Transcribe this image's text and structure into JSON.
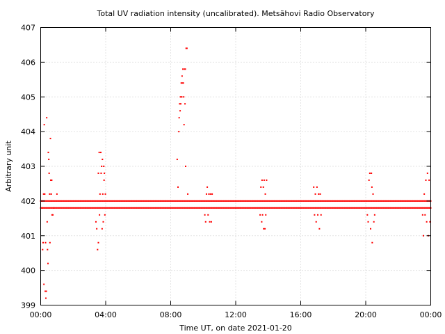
{
  "chart_data": {
    "type": "scatter",
    "title": "Total UV radiation intensity (uncalibrated). Metsähovi Radio Observatory",
    "xlabel": "Time UT, on date 2021-01-20",
    "ylabel": "Arbitrary unit",
    "xlim": [
      0,
      24
    ],
    "ylim": [
      399,
      407
    ],
    "x_ticks": [
      0,
      4,
      8,
      12,
      16,
      20,
      24
    ],
    "x_tick_labels": [
      "00:00",
      "04:00",
      "08:00",
      "12:00",
      "16:00",
      "20:00",
      "00:00"
    ],
    "y_ticks": [
      399,
      400,
      401,
      402,
      403,
      404,
      405,
      406,
      407
    ],
    "y_tick_labels": [
      "399",
      "400",
      "401",
      "402",
      "403",
      "404",
      "405",
      "406",
      "407"
    ],
    "grid": true,
    "marker_color": "#ff0000",
    "x_unit": "hours UT",
    "series": [
      {
        "baseline": [
          {
            "x_start": 0.0,
            "x_end": 24.0,
            "values": [
              401.8,
              402.0
            ]
          }
        ],
        "values": [
          [
            0.05,
            402.0
          ],
          [
            0.1,
            401.8
          ],
          [
            0.12,
            400.6
          ],
          [
            0.15,
            400.8
          ],
          [
            0.18,
            402.2
          ],
          [
            0.2,
            399.6
          ],
          [
            0.22,
            404.2
          ],
          [
            0.25,
            402.2
          ],
          [
            0.28,
            399.4
          ],
          [
            0.3,
            400.8
          ],
          [
            0.32,
            399.2
          ],
          [
            0.35,
            399.4
          ],
          [
            0.37,
            404.4
          ],
          [
            0.4,
            401.4
          ],
          [
            0.42,
            400.6
          ],
          [
            0.45,
            400.2
          ],
          [
            0.47,
            403.4
          ],
          [
            0.5,
            403.2
          ],
          [
            0.52,
            402.8
          ],
          [
            0.55,
            402.2
          ],
          [
            0.57,
            400.8
          ],
          [
            0.6,
            403.8
          ],
          [
            0.62,
            402.6
          ],
          [
            0.65,
            402.2
          ],
          [
            0.68,
            402.6
          ],
          [
            0.7,
            401.6
          ],
          [
            0.75,
            401.6
          ],
          [
            0.8,
            401.8
          ],
          [
            1.0,
            402.2
          ],
          [
            3.4,
            401.4
          ],
          [
            3.45,
            401.2
          ],
          [
            3.5,
            400.6
          ],
          [
            3.55,
            400.8
          ],
          [
            3.55,
            402.8
          ],
          [
            3.6,
            403.4
          ],
          [
            3.62,
            401.6
          ],
          [
            3.65,
            402.2
          ],
          [
            3.7,
            403.4
          ],
          [
            3.72,
            402.8
          ],
          [
            3.75,
            403.0
          ],
          [
            3.78,
            401.2
          ],
          [
            3.8,
            403.2
          ],
          [
            3.82,
            402.2
          ],
          [
            3.85,
            401.4
          ],
          [
            3.88,
            403.0
          ],
          [
            3.9,
            402.6
          ],
          [
            3.92,
            402.8
          ],
          [
            3.95,
            401.6
          ],
          [
            3.98,
            402.2
          ],
          [
            8.4,
            403.2
          ],
          [
            8.45,
            402.4
          ],
          [
            8.5,
            404.0
          ],
          [
            8.52,
            404.4
          ],
          [
            8.55,
            404.8
          ],
          [
            8.58,
            404.6
          ],
          [
            8.6,
            405.0
          ],
          [
            8.62,
            404.8
          ],
          [
            8.65,
            405.4
          ],
          [
            8.68,
            405.0
          ],
          [
            8.7,
            405.6
          ],
          [
            8.72,
            405.4
          ],
          [
            8.75,
            405.8
          ],
          [
            8.78,
            405.4
          ],
          [
            8.8,
            405.0
          ],
          [
            8.82,
            404.2
          ],
          [
            8.85,
            405.8
          ],
          [
            8.88,
            404.8
          ],
          [
            8.9,
            405.8
          ],
          [
            8.92,
            403.0
          ],
          [
            8.95,
            406.4
          ],
          [
            9.0,
            406.4
          ],
          [
            9.05,
            402.2
          ],
          [
            10.1,
            401.6
          ],
          [
            10.15,
            401.4
          ],
          [
            10.2,
            402.2
          ],
          [
            10.25,
            402.4
          ],
          [
            10.3,
            401.6
          ],
          [
            10.35,
            402.2
          ],
          [
            10.4,
            401.4
          ],
          [
            10.45,
            402.2
          ],
          [
            10.5,
            401.4
          ],
          [
            10.55,
            402.2
          ],
          [
            13.5,
            401.6
          ],
          [
            13.55,
            402.4
          ],
          [
            13.6,
            401.4
          ],
          [
            13.62,
            402.6
          ],
          [
            13.65,
            401.6
          ],
          [
            13.7,
            402.4
          ],
          [
            13.72,
            401.2
          ],
          [
            13.75,
            402.6
          ],
          [
            13.8,
            401.2
          ],
          [
            13.82,
            402.2
          ],
          [
            13.85,
            401.6
          ],
          [
            13.9,
            402.6
          ],
          [
            16.8,
            402.4
          ],
          [
            16.85,
            401.6
          ],
          [
            16.9,
            402.2
          ],
          [
            16.95,
            401.4
          ],
          [
            17.0,
            402.4
          ],
          [
            17.05,
            401.6
          ],
          [
            17.1,
            402.2
          ],
          [
            17.15,
            401.2
          ],
          [
            17.2,
            402.2
          ],
          [
            17.25,
            401.6
          ],
          [
            20.1,
            401.6
          ],
          [
            20.15,
            401.4
          ],
          [
            20.2,
            402.6
          ],
          [
            20.25,
            402.8
          ],
          [
            20.3,
            401.2
          ],
          [
            20.35,
            402.8
          ],
          [
            20.38,
            402.4
          ],
          [
            20.4,
            400.8
          ],
          [
            20.45,
            402.2
          ],
          [
            20.5,
            401.4
          ],
          [
            20.55,
            401.6
          ],
          [
            23.5,
            401.6
          ],
          [
            23.55,
            401.0
          ],
          [
            23.6,
            402.2
          ],
          [
            23.65,
            401.6
          ],
          [
            23.7,
            402.6
          ],
          [
            23.75,
            401.4
          ],
          [
            23.8,
            402.8
          ],
          [
            23.85,
            401.0
          ],
          [
            23.9,
            402.6
          ],
          [
            23.95,
            401.4
          ]
        ]
      }
    ]
  }
}
